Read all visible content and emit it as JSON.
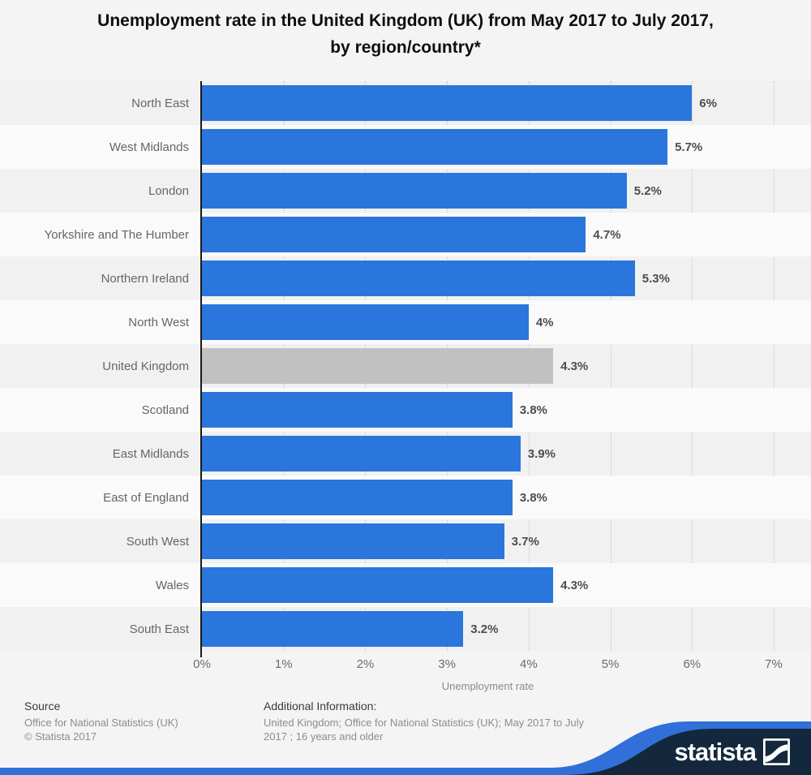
{
  "title": {
    "line1": "Unemployment rate in the United Kingdom (UK) from May 2017 to July 2017,",
    "line2": "by region/country*"
  },
  "chart_data": {
    "type": "bar",
    "orientation": "horizontal",
    "title": "Unemployment rate in the United Kingdom (UK) from May 2017 to July 2017, by region/country*",
    "categories": [
      "North East",
      "West Midlands",
      "London",
      "Yorkshire and The Humber",
      "Northern Ireland",
      "North West",
      "United Kingdom",
      "Scotland",
      "East Midlands",
      "East of England",
      "South West",
      "Wales",
      "South East"
    ],
    "values": [
      6,
      5.7,
      5.2,
      4.7,
      5.3,
      4,
      4.3,
      3.8,
      3.9,
      3.8,
      3.7,
      4.3,
      3.2
    ],
    "value_labels": [
      "6%",
      "5.7%",
      "5.2%",
      "4.7%",
      "5.3%",
      "4%",
      "4.3%",
      "3.8%",
      "3.9%",
      "3.8%",
      "3.7%",
      "4.3%",
      "3.2%"
    ],
    "xlabel": "Unemployment rate",
    "xlim": [
      0,
      7
    ],
    "x_ticks": [
      "0%",
      "1%",
      "2%",
      "3%",
      "4%",
      "5%",
      "6%",
      "7%"
    ],
    "grid": "vertical-dotted",
    "legend": "none",
    "highlight_category": "United Kingdom",
    "bar_color": "#2a76dd",
    "highlight_color": "#c1c1c1"
  },
  "footer": {
    "source": {
      "heading": "Source",
      "line1": "Office for National Statistics (UK)",
      "line2": "© Statista 2017"
    },
    "additional": {
      "heading": "Additional Information:",
      "body": "United Kingdom; Office for National Statistics (UK); May 2017 to July 2017 ; 16 years and older"
    },
    "brand": {
      "logo_text": "statista"
    }
  },
  "colors": {
    "background": "#f4f4f4",
    "bar_blue": "#2a76dd",
    "bar_gray": "#c1c1c1",
    "banner_navy": "#13283c",
    "banner_blue": "#3070d8",
    "axis_black": "#1a1a1a"
  }
}
